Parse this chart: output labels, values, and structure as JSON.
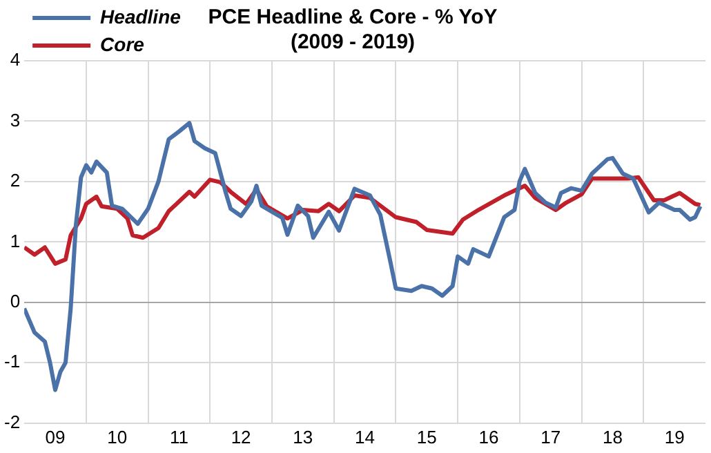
{
  "chart_data": {
    "type": "line",
    "title": [
      "PCE Headline & Core - % YoY",
      "(2009 - 2019)"
    ],
    "xlim": [
      "2009-01",
      "2020-01"
    ],
    "xticks": [
      {
        "value": "2009-07",
        "label": "09"
      },
      {
        "value": "2010-01",
        "label": null
      },
      {
        "value": "2010-07",
        "label": "10"
      },
      {
        "value": "2011-01",
        "label": null
      },
      {
        "value": "2011-07",
        "label": "11"
      },
      {
        "value": "2012-01",
        "label": null
      },
      {
        "value": "2012-07",
        "label": "12"
      },
      {
        "value": "2013-01",
        "label": null
      },
      {
        "value": "2013-07",
        "label": "13"
      },
      {
        "value": "2014-01",
        "label": null
      },
      {
        "value": "2014-07",
        "label": "14"
      },
      {
        "value": "2015-01",
        "label": null
      },
      {
        "value": "2015-07",
        "label": "15"
      },
      {
        "value": "2016-01",
        "label": null
      },
      {
        "value": "2016-07",
        "label": "16"
      },
      {
        "value": "2017-01",
        "label": null
      },
      {
        "value": "2017-07",
        "label": "17"
      },
      {
        "value": "2018-01",
        "label": null
      },
      {
        "value": "2018-07",
        "label": "18"
      },
      {
        "value": "2019-01",
        "label": null
      },
      {
        "value": "2019-07",
        "label": "19"
      }
    ],
    "ylim": [
      -2,
      4
    ],
    "yticks": [
      -2,
      -1,
      0,
      1,
      2,
      3,
      4
    ],
    "grid": true,
    "legend": "top left",
    "marker": "none",
    "line_style": "solid",
    "series": [
      {
        "name": "Headline",
        "color": "#4a72a8",
        "x": [
          "2009-01",
          "2009-03",
          "2009-05",
          "2009-06",
          "2009-07",
          "2009-08",
          "2009-09",
          "2009-10",
          "2009-11",
          "2009-12",
          "2010-01",
          "2010-02",
          "2010-03",
          "2010-05",
          "2010-06",
          "2010-08",
          "2010-11",
          "2011-01",
          "2011-03",
          "2011-05",
          "2011-07",
          "2011-09",
          "2011-10",
          "2011-12",
          "2012-02",
          "2012-04",
          "2012-05",
          "2012-07",
          "2012-09",
          "2012-10",
          "2012-11",
          "2013-01",
          "2013-03",
          "2013-04",
          "2013-06",
          "2013-08",
          "2013-09",
          "2013-12",
          "2014-02",
          "2014-05",
          "2014-08",
          "2014-10",
          "2014-12",
          "2015-01",
          "2015-04",
          "2015-06",
          "2015-08",
          "2015-10",
          "2015-12",
          "2016-01",
          "2016-03",
          "2016-04",
          "2016-07",
          "2016-10",
          "2016-12",
          "2017-01",
          "2017-02",
          "2017-04",
          "2017-06",
          "2017-08",
          "2017-09",
          "2017-11",
          "2018-01",
          "2018-03",
          "2018-06",
          "2018-07",
          "2018-09",
          "2018-11",
          "2019-02",
          "2019-04",
          "2019-07",
          "2019-08",
          "2019-10",
          "2019-11",
          "2019-12"
        ],
        "values": [
          -0.1,
          -0.5,
          -0.65,
          -1.0,
          -1.45,
          -1.15,
          -1.0,
          -0.1,
          1.27,
          2.07,
          2.27,
          2.15,
          2.33,
          2.15,
          1.6,
          1.55,
          1.3,
          1.55,
          2.0,
          2.7,
          2.83,
          2.97,
          2.67,
          2.55,
          2.47,
          1.83,
          1.55,
          1.43,
          1.67,
          1.93,
          1.6,
          1.5,
          1.4,
          1.12,
          1.6,
          1.43,
          1.07,
          1.5,
          1.19,
          1.88,
          1.77,
          1.45,
          0.65,
          0.23,
          0.19,
          0.27,
          0.23,
          0.11,
          0.27,
          0.76,
          0.64,
          0.88,
          0.76,
          1.41,
          1.53,
          2.01,
          2.21,
          1.81,
          1.65,
          1.57,
          1.81,
          1.89,
          1.85,
          2.13,
          2.37,
          2.39,
          2.13,
          2.05,
          1.49,
          1.65,
          1.53,
          1.53,
          1.37,
          1.41,
          1.59
        ]
      },
      {
        "name": "Core",
        "color": "#c0202a",
        "x": [
          "2009-01",
          "2009-03",
          "2009-05",
          "2009-07",
          "2009-09",
          "2009-10",
          "2009-12",
          "2010-01",
          "2010-03",
          "2010-04",
          "2010-07",
          "2010-09",
          "2010-10",
          "2010-12",
          "2011-03",
          "2011-05",
          "2011-09",
          "2011-10",
          "2012-01",
          "2012-03",
          "2012-05",
          "2012-08",
          "2012-10",
          "2012-12",
          "2013-04",
          "2013-07",
          "2013-10",
          "2013-12",
          "2014-02",
          "2014-05",
          "2014-08",
          "2015-01",
          "2015-05",
          "2015-07",
          "2015-12",
          "2016-02",
          "2016-05",
          "2016-10",
          "2017-02",
          "2017-04",
          "2017-08",
          "2017-10",
          "2018-01",
          "2018-03",
          "2018-07",
          "2018-10",
          "2018-12",
          "2019-03",
          "2019-05",
          "2019-08",
          "2019-11",
          "2019-12"
        ],
        "values": [
          0.91,
          0.79,
          0.91,
          0.64,
          0.71,
          1.11,
          1.39,
          1.63,
          1.75,
          1.59,
          1.55,
          1.39,
          1.11,
          1.07,
          1.23,
          1.51,
          1.83,
          1.75,
          2.03,
          1.99,
          1.83,
          1.63,
          1.87,
          1.59,
          1.39,
          1.53,
          1.51,
          1.63,
          1.51,
          1.77,
          1.73,
          1.41,
          1.33,
          1.2,
          1.14,
          1.37,
          1.53,
          1.77,
          1.93,
          1.73,
          1.53,
          1.65,
          1.79,
          2.05,
          2.05,
          2.05,
          2.07,
          1.69,
          1.69,
          1.81,
          1.63,
          1.61
        ]
      }
    ]
  }
}
